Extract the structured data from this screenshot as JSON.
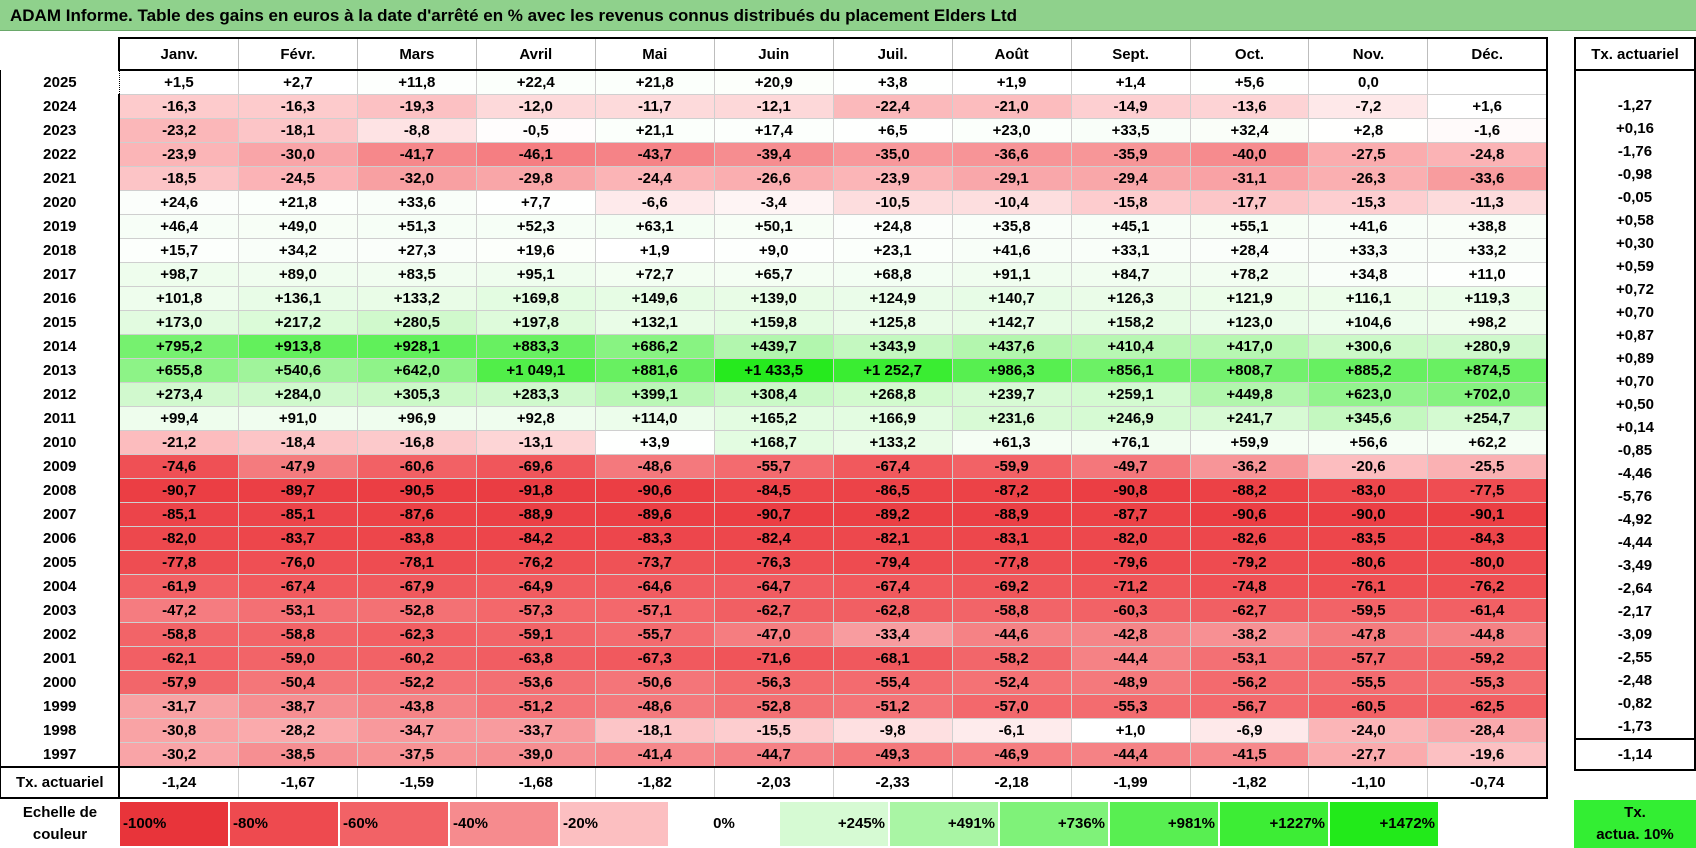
{
  "title": "ADAM Informe. Table des gains en euros à la date d'arrêté en % avec les revenus connus distribués du placement Elders Ltd",
  "chart_data": {
    "type": "heatmap",
    "title": "ADAM Informe. Table des gains en euros à la date d'arrêté en % avec les revenus connus distribués du placement Elders Ltd",
    "columns": [
      "Janv.",
      "Févr.",
      "Mars",
      "Avril",
      "Mai",
      "Juin",
      "Juil.",
      "Août",
      "Sept.",
      "Oct.",
      "Nov.",
      "Déc."
    ],
    "rate_header": "Tx. actuariel",
    "rows": [
      {
        "year": "2025",
        "values": [
          "+1,5",
          "+2,7",
          "+11,8",
          "+22,4",
          "+21,8",
          "+20,9",
          "+3,8",
          "+1,9",
          "+1,4",
          "+5,6",
          "0,0",
          ""
        ],
        "rate": ""
      },
      {
        "year": "2024",
        "values": [
          "-16,3",
          "-16,3",
          "-19,3",
          "-12,0",
          "-11,7",
          "-12,1",
          "-22,4",
          "-21,0",
          "-14,9",
          "-13,6",
          "-7,2",
          "+1,6"
        ],
        "rate": "-1,27"
      },
      {
        "year": "2023",
        "values": [
          "-23,2",
          "-18,1",
          "-8,8",
          "-0,5",
          "+21,1",
          "+17,4",
          "+6,5",
          "+23,0",
          "+33,5",
          "+32,4",
          "+2,8",
          "-1,6"
        ],
        "rate": "+0,16"
      },
      {
        "year": "2022",
        "values": [
          "-23,9",
          "-30,0",
          "-41,7",
          "-46,1",
          "-43,7",
          "-39,4",
          "-35,0",
          "-36,6",
          "-35,9",
          "-40,0",
          "-27,5",
          "-24,8"
        ],
        "rate": "-1,76"
      },
      {
        "year": "2021",
        "values": [
          "-18,5",
          "-24,5",
          "-32,0",
          "-29,8",
          "-24,4",
          "-26,6",
          "-23,9",
          "-29,1",
          "-29,4",
          "-31,1",
          "-26,3",
          "-33,6"
        ],
        "rate": "-0,98"
      },
      {
        "year": "2020",
        "values": [
          "+24,6",
          "+21,8",
          "+33,6",
          "+7,7",
          "-6,6",
          "-3,4",
          "-10,5",
          "-10,4",
          "-15,8",
          "-17,7",
          "-15,3",
          "-11,3"
        ],
        "rate": "-0,05"
      },
      {
        "year": "2019",
        "values": [
          "+46,4",
          "+49,0",
          "+51,3",
          "+52,3",
          "+63,1",
          "+50,1",
          "+24,8",
          "+35,8",
          "+45,1",
          "+55,1",
          "+41,6",
          "+38,8"
        ],
        "rate": "+0,58"
      },
      {
        "year": "2018",
        "values": [
          "+15,7",
          "+34,2",
          "+27,3",
          "+19,6",
          "+1,9",
          "+9,0",
          "+23,1",
          "+41,6",
          "+33,1",
          "+28,4",
          "+33,3",
          "+33,2"
        ],
        "rate": "+0,30"
      },
      {
        "year": "2017",
        "values": [
          "+98,7",
          "+89,0",
          "+83,5",
          "+95,1",
          "+72,7",
          "+65,7",
          "+68,8",
          "+91,1",
          "+84,7",
          "+78,2",
          "+34,8",
          "+11,0"
        ],
        "rate": "+0,59"
      },
      {
        "year": "2016",
        "values": [
          "+101,8",
          "+136,1",
          "+133,2",
          "+169,8",
          "+149,6",
          "+139,0",
          "+124,9",
          "+140,7",
          "+126,3",
          "+121,9",
          "+116,1",
          "+119,3"
        ],
        "rate": "+0,72"
      },
      {
        "year": "2015",
        "values": [
          "+173,0",
          "+217,2",
          "+280,5",
          "+197,8",
          "+132,1",
          "+159,8",
          "+125,8",
          "+142,7",
          "+158,2",
          "+123,0",
          "+104,6",
          "+98,2"
        ],
        "rate": "+0,70"
      },
      {
        "year": "2014",
        "values": [
          "+795,2",
          "+913,8",
          "+928,1",
          "+883,3",
          "+686,2",
          "+439,7",
          "+343,9",
          "+437,6",
          "+410,4",
          "+417,0",
          "+300,6",
          "+280,9"
        ],
        "rate": "+0,87"
      },
      {
        "year": "2013",
        "values": [
          "+655,8",
          "+540,6",
          "+642,0",
          "+1 049,1",
          "+881,6",
          "+1 433,5",
          "+1 252,7",
          "+986,3",
          "+856,1",
          "+808,7",
          "+885,2",
          "+874,5"
        ],
        "rate": "+0,89"
      },
      {
        "year": "2012",
        "values": [
          "+273,4",
          "+284,0",
          "+305,3",
          "+283,3",
          "+399,1",
          "+308,4",
          "+268,8",
          "+239,7",
          "+259,1",
          "+449,8",
          "+623,0",
          "+702,0"
        ],
        "rate": "+0,70"
      },
      {
        "year": "2011",
        "values": [
          "+99,4",
          "+91,0",
          "+96,9",
          "+92,8",
          "+114,0",
          "+165,2",
          "+166,9",
          "+231,6",
          "+246,9",
          "+241,7",
          "+345,6",
          "+254,7"
        ],
        "rate": "+0,50"
      },
      {
        "year": "2010",
        "values": [
          "-21,2",
          "-18,4",
          "-16,8",
          "-13,1",
          "+3,9",
          "+168,7",
          "+133,2",
          "+61,3",
          "+76,1",
          "+59,9",
          "+56,6",
          "+62,2"
        ],
        "rate": "+0,14"
      },
      {
        "year": "2009",
        "values": [
          "-74,6",
          "-47,9",
          "-60,6",
          "-69,6",
          "-48,6",
          "-55,7",
          "-67,4",
          "-59,9",
          "-49,7",
          "-36,2",
          "-20,6",
          "-25,5"
        ],
        "rate": "-0,85"
      },
      {
        "year": "2008",
        "values": [
          "-90,7",
          "-89,7",
          "-90,5",
          "-91,8",
          "-90,6",
          "-84,5",
          "-86,5",
          "-87,2",
          "-90,8",
          "-88,2",
          "-83,0",
          "-77,5"
        ],
        "rate": "-4,46"
      },
      {
        "year": "2007",
        "values": [
          "-85,1",
          "-85,1",
          "-87,6",
          "-88,9",
          "-89,6",
          "-90,7",
          "-89,2",
          "-88,9",
          "-87,7",
          "-90,6",
          "-90,0",
          "-90,1"
        ],
        "rate": "-5,76"
      },
      {
        "year": "2006",
        "values": [
          "-82,0",
          "-83,7",
          "-83,8",
          "-84,2",
          "-83,3",
          "-82,4",
          "-82,1",
          "-83,1",
          "-82,0",
          "-82,6",
          "-83,5",
          "-84,3"
        ],
        "rate": "-4,92"
      },
      {
        "year": "2005",
        "values": [
          "-77,8",
          "-76,0",
          "-78,1",
          "-76,2",
          "-73,7",
          "-76,3",
          "-79,4",
          "-77,8",
          "-79,6",
          "-79,2",
          "-80,6",
          "-80,0"
        ],
        "rate": "-4,44"
      },
      {
        "year": "2004",
        "values": [
          "-61,9",
          "-67,4",
          "-67,9",
          "-64,9",
          "-64,6",
          "-64,7",
          "-67,4",
          "-69,2",
          "-71,2",
          "-74,8",
          "-76,1",
          "-76,2"
        ],
        "rate": "-3,49"
      },
      {
        "year": "2003",
        "values": [
          "-47,2",
          "-53,1",
          "-52,8",
          "-57,3",
          "-57,1",
          "-62,7",
          "-62,8",
          "-58,8",
          "-60,3",
          "-62,7",
          "-59,5",
          "-61,4"
        ],
        "rate": "-2,64"
      },
      {
        "year": "2002",
        "values": [
          "-58,8",
          "-58,8",
          "-62,3",
          "-59,1",
          "-55,7",
          "-47,0",
          "-33,4",
          "-44,6",
          "-42,8",
          "-38,2",
          "-47,8",
          "-44,8"
        ],
        "rate": "-2,17"
      },
      {
        "year": "2001",
        "values": [
          "-62,1",
          "-59,0",
          "-60,2",
          "-63,8",
          "-67,3",
          "-71,6",
          "-68,1",
          "-58,2",
          "-44,4",
          "-53,1",
          "-57,7",
          "-59,2"
        ],
        "rate": "-3,09"
      },
      {
        "year": "2000",
        "values": [
          "-57,9",
          "-50,4",
          "-52,2",
          "-53,6",
          "-50,6",
          "-56,3",
          "-55,4",
          "-52,4",
          "-48,9",
          "-56,2",
          "-55,5",
          "-55,3"
        ],
        "rate": "-2,55"
      },
      {
        "year": "1999",
        "values": [
          "-31,7",
          "-38,7",
          "-43,8",
          "-51,2",
          "-48,6",
          "-52,8",
          "-51,2",
          "-57,0",
          "-55,3",
          "-56,7",
          "-60,5",
          "-62,5"
        ],
        "rate": "-2,48"
      },
      {
        "year": "1998",
        "values": [
          "-30,8",
          "-28,2",
          "-34,7",
          "-33,7",
          "-18,1",
          "-15,5",
          "-9,8",
          "-6,1",
          "+1,0",
          "-6,9",
          "-24,0",
          "-28,4"
        ],
        "rate": "-0,82"
      },
      {
        "year": "1997",
        "values": [
          "-30,2",
          "-38,5",
          "-37,5",
          "-39,0",
          "-41,4",
          "-44,7",
          "-49,3",
          "-46,9",
          "-44,4",
          "-41,5",
          "-27,7",
          "-19,6"
        ],
        "rate": "-1,73"
      }
    ],
    "average_row": {
      "label": "Tx. actuariel",
      "values": [
        "-1,24",
        "-1,67",
        "-1,59",
        "-1,68",
        "-1,82",
        "-2,03",
        "-2,33",
        "-2,18",
        "-1,99",
        "-1,82",
        "-1,10",
        "-0,74"
      ],
      "rate": "-1,14"
    },
    "color_scale": {
      "label_line1": "Echelle de",
      "label_line2": "couleur",
      "stops": [
        {
          "label": "-100%",
          "value": -100,
          "color": "#e8343a"
        },
        {
          "label": "-80%",
          "value": -80,
          "color": "#ee4a4f"
        },
        {
          "label": "-60%",
          "value": -60,
          "color": "#f26266"
        },
        {
          "label": "-40%",
          "value": -40,
          "color": "#f68b8e"
        },
        {
          "label": "-20%",
          "value": -20,
          "color": "#fcbfc1"
        },
        {
          "label": "0%",
          "value": 0,
          "color": "#ffffff"
        },
        {
          "label": "+245%",
          "value": 245,
          "color": "#d6fad3"
        },
        {
          "label": "+491%",
          "value": 491,
          "color": "#a9f5a4"
        },
        {
          "label": "+736%",
          "value": 736,
          "color": "#7ff279"
        },
        {
          "label": "+981%",
          "value": 981,
          "color": "#58ef51"
        },
        {
          "label": "+1227%",
          "value": 1227,
          "color": "#3ded35"
        },
        {
          "label": "+1472%",
          "value": 1472,
          "color": "#22ea1a"
        }
      ],
      "rate_label_line1": "Tx.",
      "rate_label_line2": "actua. 10%"
    }
  }
}
